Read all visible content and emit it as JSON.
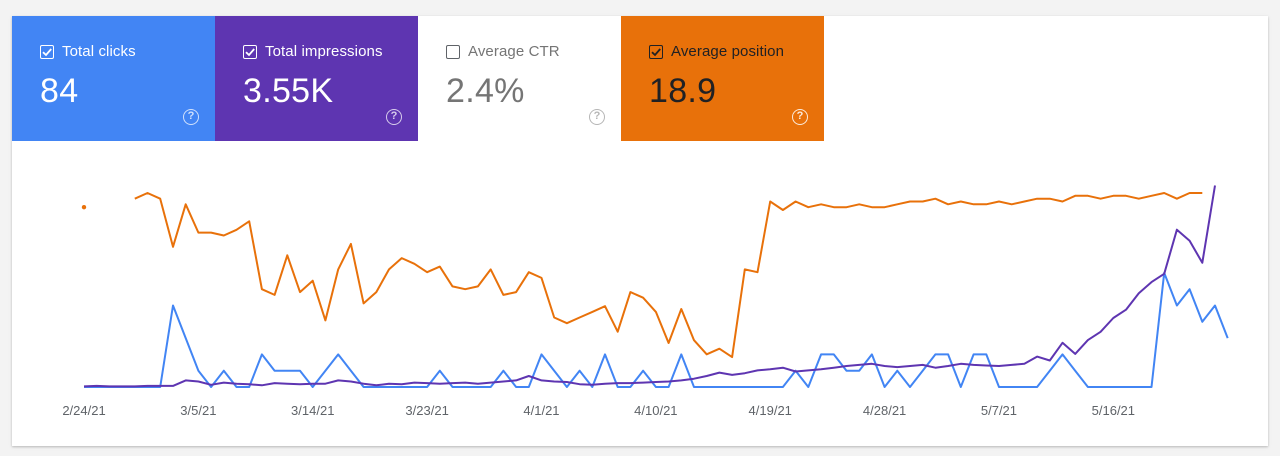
{
  "metrics": [
    {
      "key": "clicks",
      "label": "Total clicks",
      "value": "84",
      "checked": true,
      "color": "#4285f4"
    },
    {
      "key": "impressions",
      "label": "Total impressions",
      "value": "3.55K",
      "checked": true,
      "color": "#5e35b1"
    },
    {
      "key": "ctr",
      "label": "Average CTR",
      "value": "2.4%",
      "checked": false,
      "color": "#ffffff"
    },
    {
      "key": "position",
      "label": "Average position",
      "value": "18.9",
      "checked": true,
      "color": "#e8710a"
    }
  ],
  "help_glyph": "?",
  "chart_data": {
    "type": "line",
    "x_tick_labels": [
      "2/24/21",
      "3/5/21",
      "3/14/21",
      "3/23/21",
      "4/1/21",
      "4/10/21",
      "4/19/21",
      "4/28/21",
      "5/7/21",
      "5/16/21"
    ],
    "x_start": "2/24/21",
    "x_end": "5/26/21",
    "grid": false,
    "legend": "metric cards above chart",
    "series": [
      {
        "name": "Total clicks",
        "color": "#4285f4",
        "values": [
          0,
          0,
          0,
          0,
          0,
          0,
          0,
          5,
          3,
          1,
          0,
          1,
          0,
          0,
          2,
          1,
          1,
          1,
          0,
          1,
          2,
          1,
          0,
          0,
          0,
          0,
          0,
          0,
          1,
          0,
          0,
          0,
          0,
          1,
          0,
          0,
          2,
          1,
          0,
          1,
          0,
          2,
          0,
          0,
          1,
          0,
          0,
          2,
          0,
          0,
          0,
          0,
          0,
          0,
          0,
          0,
          1,
          0,
          2,
          2,
          1,
          1,
          2,
          0,
          1,
          0,
          1,
          2,
          2,
          0,
          2,
          2,
          0,
          0,
          0,
          0,
          1,
          2,
          1,
          0,
          0,
          0,
          0,
          0,
          0,
          7,
          5,
          6,
          4,
          5,
          3
        ]
      },
      {
        "name": "Total impressions",
        "color": "#5e35b1",
        "values": [
          1,
          2,
          1,
          1,
          1,
          2,
          2,
          2,
          12,
          10,
          4,
          8,
          6,
          5,
          3,
          7,
          6,
          5,
          6,
          6,
          12,
          10,
          6,
          3,
          6,
          5,
          8,
          7,
          6,
          7,
          8,
          6,
          8,
          10,
          12,
          20,
          12,
          10,
          9,
          5,
          4,
          6,
          7,
          7,
          8,
          9,
          10,
          12,
          15,
          20,
          26,
          22,
          25,
          30,
          32,
          35,
          28,
          30,
          32,
          35,
          38,
          40,
          42,
          38,
          36,
          38,
          40,
          35,
          38,
          42,
          40,
          39,
          38,
          40,
          42,
          55,
          48,
          80,
          60,
          85,
          100,
          125,
          140,
          170,
          190,
          205,
          285,
          265,
          225,
          365
        ]
      },
      {
        "name": "Average position",
        "color": "#e8710a",
        "values": [
          23,
          null,
          null,
          null,
          20,
          18,
          20,
          37,
          22,
          32,
          32,
          33,
          31,
          28,
          52,
          54,
          40,
          53,
          49,
          63,
          45,
          36,
          57,
          53,
          45,
          41,
          43,
          46,
          44,
          51,
          52,
          51,
          45,
          54,
          53,
          46,
          48,
          62,
          64,
          62,
          60,
          58,
          67,
          53,
          55,
          60,
          71,
          59,
          70,
          75,
          73,
          76,
          45,
          46,
          21,
          24,
          21,
          23,
          22,
          23,
          23,
          22,
          23,
          23,
          22,
          21,
          21,
          20,
          22,
          21,
          22,
          22,
          21,
          22,
          21,
          20,
          20,
          21,
          19,
          19,
          20,
          19,
          19,
          20,
          19,
          18,
          20,
          18,
          18
        ],
        "inverted_axis": true
      }
    ]
  }
}
